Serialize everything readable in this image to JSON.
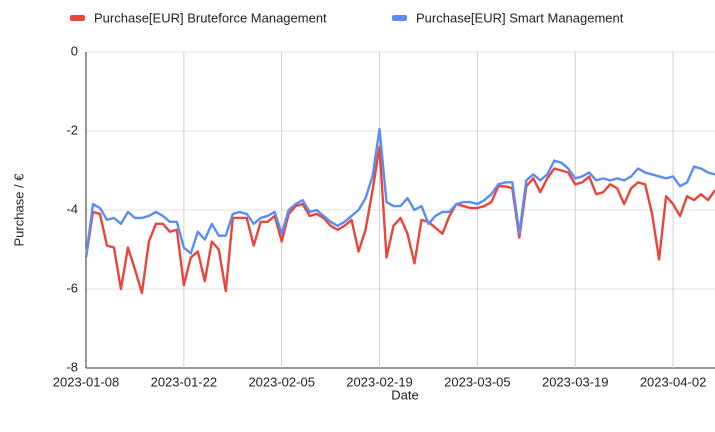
{
  "chart_data": {
    "type": "line",
    "x_label": "Date",
    "y_label": "Purchase / €",
    "x": [
      "2023-01-08",
      "2023-01-09",
      "2023-01-10",
      "2023-01-11",
      "2023-01-12",
      "2023-01-13",
      "2023-01-14",
      "2023-01-15",
      "2023-01-16",
      "2023-01-17",
      "2023-01-18",
      "2023-01-19",
      "2023-01-20",
      "2023-01-21",
      "2023-01-22",
      "2023-01-23",
      "2023-01-24",
      "2023-01-25",
      "2023-01-26",
      "2023-01-27",
      "2023-01-28",
      "2023-01-29",
      "2023-01-30",
      "2023-01-31",
      "2023-02-01",
      "2023-02-02",
      "2023-02-03",
      "2023-02-04",
      "2023-02-05",
      "2023-02-06",
      "2023-02-07",
      "2023-02-08",
      "2023-02-09",
      "2023-02-10",
      "2023-02-11",
      "2023-02-12",
      "2023-02-13",
      "2023-02-14",
      "2023-02-15",
      "2023-02-16",
      "2023-02-17",
      "2023-02-18",
      "2023-02-19",
      "2023-02-20",
      "2023-02-21",
      "2023-02-22",
      "2023-02-23",
      "2023-02-24",
      "2023-02-25",
      "2023-02-26",
      "2023-02-27",
      "2023-02-28",
      "2023-03-01",
      "2023-03-02",
      "2023-03-03",
      "2023-03-04",
      "2023-03-05",
      "2023-03-06",
      "2023-03-07",
      "2023-03-08",
      "2023-03-09",
      "2023-03-10",
      "2023-03-11",
      "2023-03-12",
      "2023-03-13",
      "2023-03-14",
      "2023-03-15",
      "2023-03-16",
      "2023-03-17",
      "2023-03-18",
      "2023-03-19",
      "2023-03-20",
      "2023-03-21",
      "2023-03-22",
      "2023-03-23",
      "2023-03-24",
      "2023-03-25",
      "2023-03-26",
      "2023-03-27",
      "2023-03-28",
      "2023-03-29",
      "2023-03-30",
      "2023-03-31",
      "2023-04-01",
      "2023-04-02",
      "2023-04-03",
      "2023-04-04",
      "2023-04-05",
      "2023-04-06",
      "2023-04-07",
      "2023-04-08"
    ],
    "series": [
      {
        "name": "Purchase[EUR] Bruteforce Management",
        "color": "#e8453c",
        "values": [
          -5.2,
          -4.05,
          -4.1,
          -4.9,
          -4.95,
          -6.0,
          -4.95,
          -5.5,
          -6.1,
          -4.8,
          -4.35,
          -4.35,
          -4.55,
          -4.5,
          -5.9,
          -5.2,
          -5.05,
          -5.8,
          -4.8,
          -5.0,
          -6.05,
          -4.2,
          -4.2,
          -4.2,
          -4.9,
          -4.3,
          -4.3,
          -4.15,
          -4.8,
          -4.1,
          -3.9,
          -3.85,
          -4.15,
          -4.1,
          -4.2,
          -4.4,
          -4.5,
          -4.4,
          -4.25,
          -5.05,
          -4.5,
          -3.5,
          -2.4,
          -5.2,
          -4.4,
          -4.2,
          -4.6,
          -5.35,
          -4.25,
          -4.3,
          -4.45,
          -4.6,
          -4.15,
          -3.85,
          -3.9,
          -3.95,
          -3.95,
          -3.9,
          -3.8,
          -3.4,
          -3.4,
          -3.45,
          -4.7,
          -3.4,
          -3.2,
          -3.55,
          -3.2,
          -2.95,
          -3.0,
          -3.05,
          -3.35,
          -3.3,
          -3.15,
          -3.6,
          -3.55,
          -3.35,
          -3.45,
          -3.85,
          -3.45,
          -3.3,
          -3.35,
          -4.1,
          -5.25,
          -3.65,
          -3.85,
          -4.15,
          -3.65,
          -3.75,
          -3.6,
          -3.75,
          -3.5
        ]
      },
      {
        "name": "Purchase[EUR] Smart Management",
        "color": "#5b8def",
        "values": [
          -5.2,
          -3.85,
          -3.95,
          -4.25,
          -4.2,
          -4.35,
          -4.05,
          -4.2,
          -4.2,
          -4.15,
          -4.05,
          -4.15,
          -4.3,
          -4.3,
          -4.95,
          -5.1,
          -4.55,
          -4.75,
          -4.35,
          -4.65,
          -4.65,
          -4.1,
          -4.05,
          -4.1,
          -4.35,
          -4.2,
          -4.15,
          -4.05,
          -4.6,
          -4.0,
          -3.85,
          -3.75,
          -4.05,
          -4.0,
          -4.15,
          -4.3,
          -4.4,
          -4.3,
          -4.15,
          -4.0,
          -3.7,
          -3.15,
          -1.95,
          -3.8,
          -3.9,
          -3.9,
          -3.7,
          -4.0,
          -3.9,
          -4.35,
          -4.15,
          -4.05,
          -4.05,
          -3.85,
          -3.8,
          -3.8,
          -3.85,
          -3.75,
          -3.6,
          -3.35,
          -3.3,
          -3.3,
          -4.6,
          -3.25,
          -3.1,
          -3.25,
          -3.1,
          -2.75,
          -2.8,
          -2.95,
          -3.2,
          -3.15,
          -3.05,
          -3.25,
          -3.2,
          -3.25,
          -3.2,
          -3.25,
          -3.15,
          -2.95,
          -3.05,
          -3.1,
          -3.15,
          -3.2,
          -3.15,
          -3.4,
          -3.3,
          -2.9,
          -2.95,
          -3.05,
          -3.1
        ]
      }
    ],
    "xlim": [
      "2023-01-08",
      "2023-04-08"
    ],
    "xticks": [
      "2023-01-08",
      "2023-01-22",
      "2023-02-05",
      "2023-02-19",
      "2023-03-05",
      "2023-03-19",
      "2023-04-02"
    ],
    "ylim": [
      -8,
      0
    ],
    "yticks": [
      0,
      -2,
      -4,
      -6,
      -8
    ],
    "grid": true,
    "legend": "top"
  }
}
